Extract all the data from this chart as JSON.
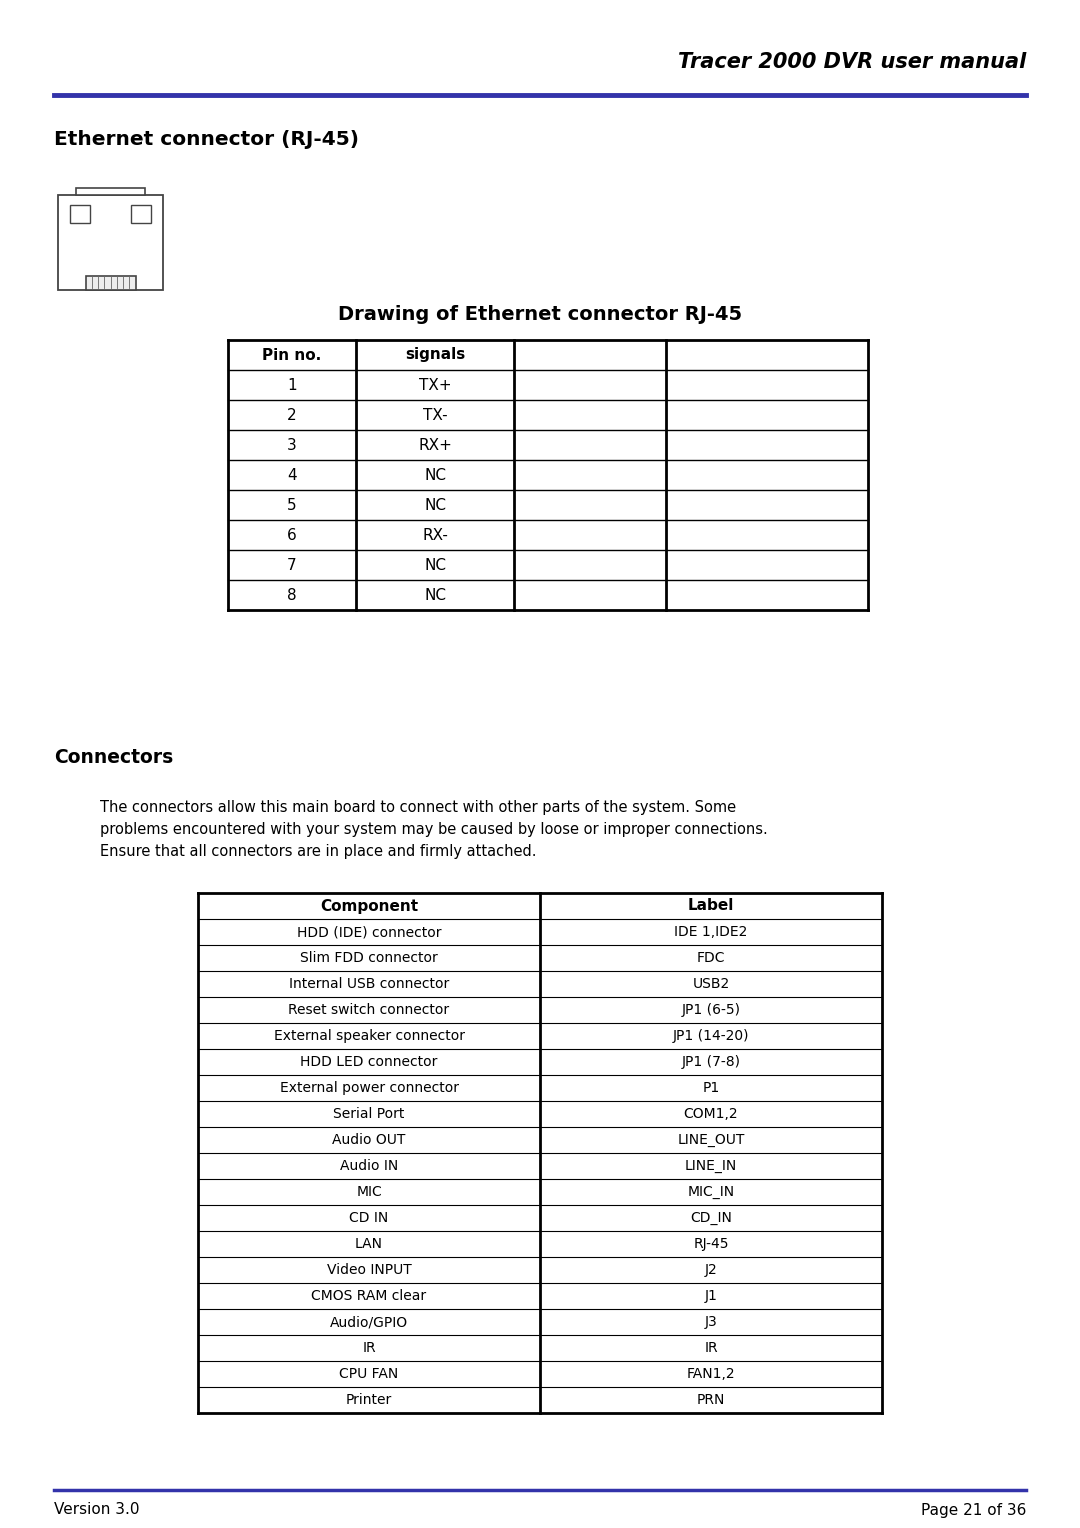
{
  "title_header": "Tracer 2000 DVR user manual",
  "header_line_color": "#3333aa",
  "section1_title": "Ethernet connector (RJ-45)",
  "table1_title": "Drawing of Ethernet connector RJ-45",
  "table1_headers": [
    "Pin no.",
    "signals",
    "",
    ""
  ],
  "table1_rows": [
    [
      "1",
      "TX+",
      "",
      ""
    ],
    [
      "2",
      "TX-",
      "",
      ""
    ],
    [
      "3",
      "RX+",
      "",
      ""
    ],
    [
      "4",
      "NC",
      "",
      ""
    ],
    [
      "5",
      "NC",
      "",
      ""
    ],
    [
      "6",
      "RX-",
      "",
      ""
    ],
    [
      "7",
      "NC",
      "",
      ""
    ],
    [
      "8",
      "NC",
      "",
      ""
    ]
  ],
  "section2_title": "Connectors",
  "section2_body": "The connectors allow this main board to connect with other parts of the system. Some\nproblems encountered with your system may be caused by loose or improper connections.\nEnsure that all connectors are in place and firmly attached.",
  "table2_headers": [
    "Component",
    "Label"
  ],
  "table2_rows": [
    [
      "HDD (IDE) connector",
      "IDE 1,IDE2"
    ],
    [
      "Slim FDD connector",
      "FDC"
    ],
    [
      "Internal USB connector",
      "USB2"
    ],
    [
      "Reset switch connector",
      "JP1 (6-5)"
    ],
    [
      "External speaker connector",
      "JP1 (14-20)"
    ],
    [
      "HDD LED connector",
      "JP1 (7-8)"
    ],
    [
      "External power connector",
      "P1"
    ],
    [
      "Serial Port",
      "COM1,2"
    ],
    [
      "Audio OUT",
      "LINE_OUT"
    ],
    [
      "Audio IN",
      "LINE_IN"
    ],
    [
      "MIC",
      "MIC_IN"
    ],
    [
      "CD IN",
      "CD_IN"
    ],
    [
      "LAN",
      "RJ-45"
    ],
    [
      "Video INPUT",
      "J2"
    ],
    [
      "CMOS RAM clear",
      "J1"
    ],
    [
      "Audio/GPIO",
      "J3"
    ],
    [
      "IR",
      "IR"
    ],
    [
      "CPU FAN",
      "FAN1,2"
    ],
    [
      "Printer",
      "PRN"
    ]
  ],
  "footer_left": "Version 3.0",
  "footer_right": "Page 21 of 36",
  "bg_color": "#ffffff",
  "text_color": "#000000"
}
